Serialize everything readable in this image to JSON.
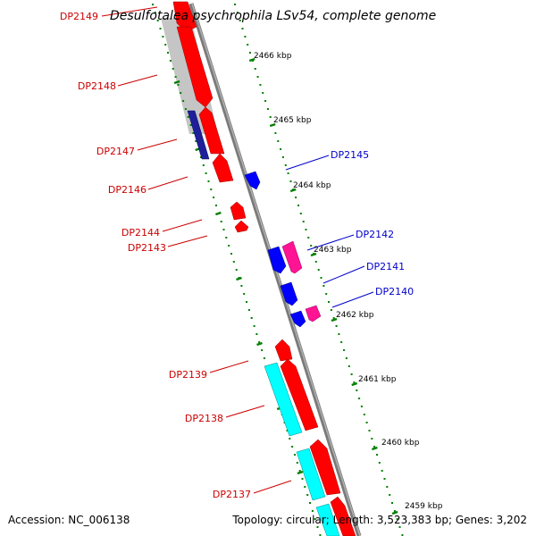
{
  "title": "Desulfotalea psychrophila LSv54, complete genome",
  "accession": "Accession: NC_006138",
  "topology": "Topology: circular; Length: 3,523,383 bp; Genes: 3,202",
  "colors": {
    "forward_cds": "#ff0000",
    "reverse_cds": "#0000ff",
    "forward_other": "#00ffff",
    "reverse_other": "#ff1493",
    "backbone": "#808080",
    "ticks": "#008000",
    "label_red": "#cc0000",
    "label_blue": "#0000cc"
  },
  "scale_labels": [
    "2466 kbp",
    "2465 kbp",
    "2464 kbp",
    "2463 kbp",
    "2462 kbp",
    "2461 kbp",
    "2460 kbp",
    "2459 kbp"
  ],
  "labels_left": [
    "DP2149",
    "DP2148",
    "DP2147",
    "DP2146",
    "DP2144",
    "DP2143",
    "DP2139",
    "DP2138",
    "DP2137"
  ],
  "labels_right": [
    "DP2145",
    "DP2142",
    "DP2141",
    "DP2140"
  ]
}
